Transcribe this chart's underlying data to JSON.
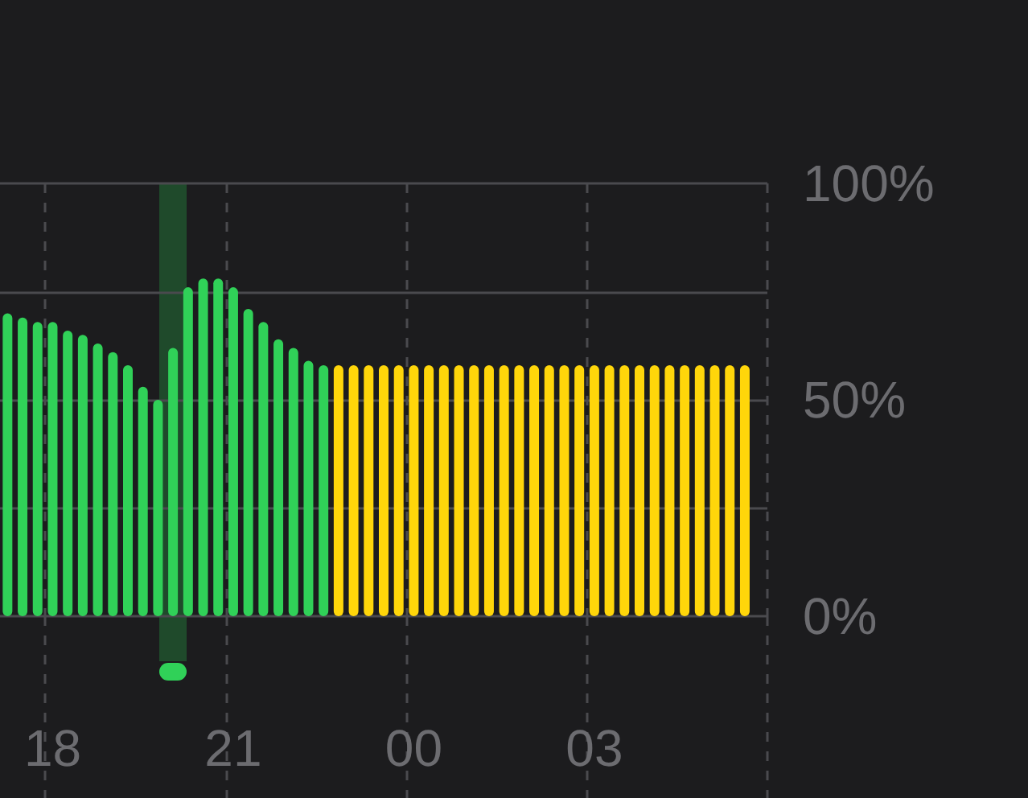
{
  "chart_data": {
    "type": "bar",
    "categories": [
      null,
      null,
      null,
      "18",
      null,
      null,
      null,
      null,
      null,
      null,
      null,
      null,
      null,
      null,
      null,
      "21",
      null,
      null,
      null,
      null,
      null,
      null,
      null,
      null,
      null,
      null,
      null,
      "00",
      null,
      null,
      null,
      null,
      null,
      null,
      null,
      null,
      null,
      null,
      null,
      "03",
      null,
      null,
      null,
      null,
      null,
      null,
      null,
      null,
      null,
      null,
      null
    ],
    "values": [
      70,
      69,
      68,
      68,
      66,
      65,
      63,
      61,
      58,
      53,
      50,
      62,
      76,
      78,
      78,
      76,
      71,
      68,
      64,
      62,
      59,
      58,
      58,
      58,
      58,
      58,
      58,
      58,
      58,
      58,
      58,
      58,
      58,
      58,
      58,
      58,
      58,
      58,
      58,
      58,
      58,
      58,
      58,
      58,
      58,
      58,
      58,
      58,
      58,
      58,
      null
    ],
    "colors": [
      "#30d158",
      "#30d158",
      "#30d158",
      "#30d158",
      "#30d158",
      "#30d158",
      "#30d158",
      "#30d158",
      "#30d158",
      "#30d158",
      "#30d158",
      "#30d158",
      "#30d158",
      "#30d158",
      "#30d158",
      "#30d158",
      "#30d158",
      "#30d158",
      "#30d158",
      "#30d158",
      "#30d158",
      "#30d158",
      "#ffd60a",
      "#ffd60a",
      "#ffd60a",
      "#ffd60a",
      "#ffd60a",
      "#ffd60a",
      "#ffd60a",
      "#ffd60a",
      "#ffd60a",
      "#ffd60a",
      "#ffd60a",
      "#ffd60a",
      "#ffd60a",
      "#ffd60a",
      "#ffd60a",
      "#ffd60a",
      "#ffd60a",
      "#ffd60a",
      "#ffd60a",
      "#ffd60a",
      "#ffd60a",
      "#ffd60a",
      "#ffd60a",
      "#ffd60a",
      "#ffd60a",
      "#ffd60a",
      "#ffd60a",
      "#ffd60a",
      null
    ],
    "ylim": [
      0,
      100
    ],
    "yticks": [
      {
        "value": 0,
        "label": "0%"
      },
      {
        "value": 25,
        "label": null
      },
      {
        "value": 50,
        "label": "50%"
      },
      {
        "value": 75,
        "label": null
      },
      {
        "value": 100,
        "label": "100%"
      }
    ],
    "grid": true
  }
}
